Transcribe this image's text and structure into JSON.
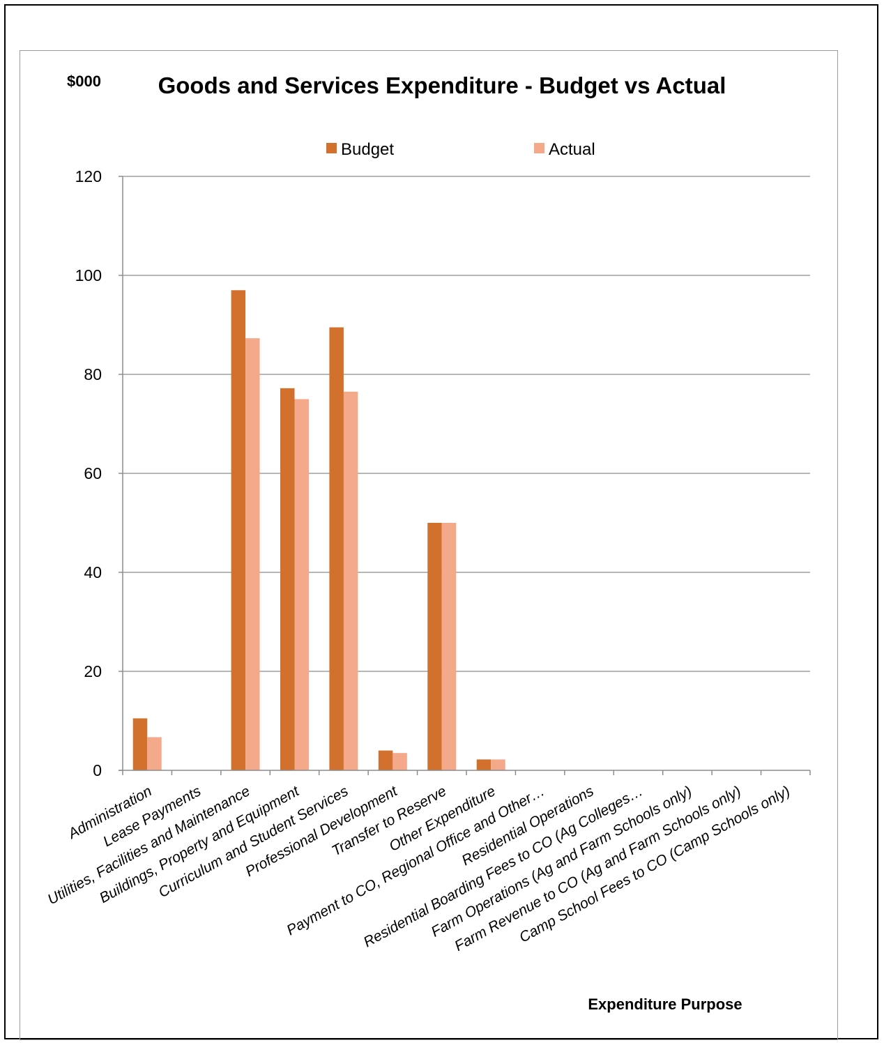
{
  "chart_data": {
    "type": "bar",
    "title": "Goods and Services Expenditure - Budget vs Actual",
    "unit_label": "$000",
    "xlabel": "Expenditure Purpose",
    "ylabel": "",
    "ylim": [
      0,
      120
    ],
    "yticks": [
      0,
      20,
      40,
      60,
      80,
      100,
      120
    ],
    "grid": true,
    "legend_position": "top-center",
    "categories": [
      "Administration",
      "Lease Payments",
      "Utilities, Facilities and Maintenance",
      "Buildings, Property and Equipment",
      "Curriculum and Student Services",
      "Professional Development",
      "Transfer to Reserve",
      "Other Expenditure",
      "Payment to CO, Regional Office and Other…",
      "Residential Operations",
      "Residential Boarding Fees to CO (Ag Colleges…",
      "Farm Operations (Ag and Farm Schools only)",
      "Farm Revenue to CO (Ag and Farm Schools only)",
      "Camp School Fees to CO (Camp Schools only)"
    ],
    "series": [
      {
        "name": "Budget",
        "color": "#d2702d",
        "values": [
          10.5,
          0,
          97,
          77.2,
          89.5,
          4,
          50,
          2.2,
          0,
          0,
          0,
          0,
          0,
          0
        ]
      },
      {
        "name": "Actual",
        "color": "#f4a98a",
        "values": [
          6.7,
          0,
          87.3,
          75,
          76.5,
          3.5,
          50,
          2.2,
          0,
          0,
          0,
          0,
          0,
          0
        ]
      }
    ]
  }
}
